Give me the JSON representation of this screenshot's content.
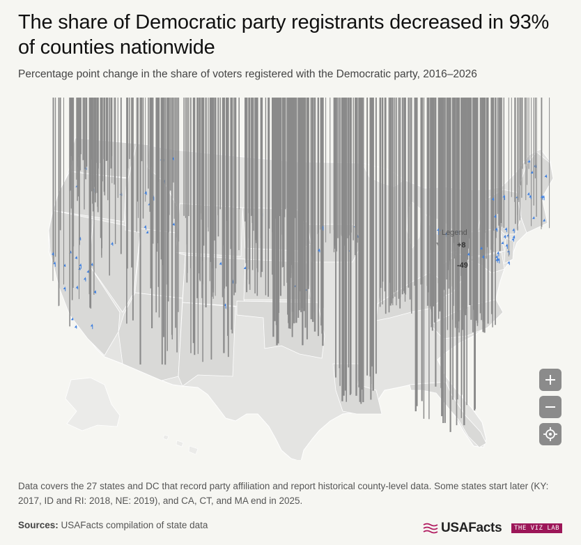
{
  "header": {
    "title": "The share of Democratic party registrants decreased in 93% of counties nationwide",
    "subtitle": "Percentage point change in the share of voters registered with the Democratic party, 2016–2026"
  },
  "legend": {
    "title": "Legend",
    "max_label": "+8",
    "min_label": "-49",
    "increase_color": "#3d7fe0",
    "decrease_color": "#8a8a8a"
  },
  "map": {
    "type": "arrow-map",
    "region": "United States counties",
    "land_color": "#e4e4e2",
    "highlight_state_color": "#d6d6d4",
    "ocean_color": "#f6f6f2"
  },
  "controls": {
    "zoom_in": "+",
    "zoom_out": "−",
    "recenter": "recenter-icon"
  },
  "footer": {
    "note": "Data covers the 27 states and DC that record party affiliation and report historical county-level data. Some states start later (KY: 2017, ID and RI: 2018, NE: 2019), and CA, CT, and MA end in 2025.",
    "sources_label": "Sources:",
    "sources_text": " USAFacts compilation of state data",
    "brand": "USAFacts",
    "badge": "THE VIZ LAB"
  }
}
